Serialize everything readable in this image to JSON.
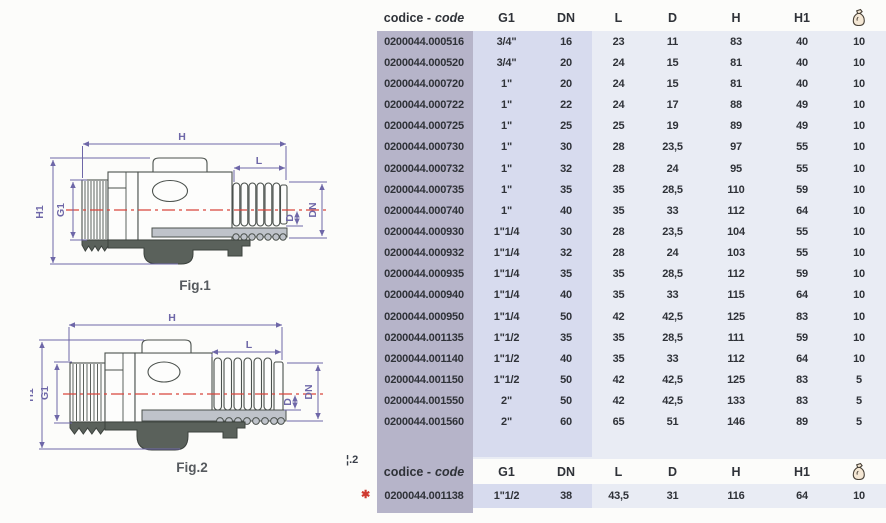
{
  "colors": {
    "code_column_bg": "#b6b4c9",
    "gdn_column_bg": "#d7dbee",
    "table_bg": "#e9ecf4",
    "dimension_line": "#6e67a8",
    "centerline_red": "#d9453c",
    "section_gray": "#bfc3ca",
    "section_dark": "#5a615b",
    "text": "#2f3238",
    "asterisk_red": "#cf3a30"
  },
  "figures": {
    "dim_labels": {
      "h": "H",
      "l": "L",
      "h1": "H1",
      "g1": "G1",
      "d": "D",
      "dn": "DN"
    },
    "fig1_caption": "Fig.1",
    "fig2_caption": "Fig.2"
  },
  "notes": {
    "fig_ref_fragment": "¦.2",
    "asterisk": "✱"
  },
  "table": {
    "headers": {
      "code_bold": "codice -",
      "code_italic": "code",
      "g1": "G1",
      "dn": "DN",
      "l": "L",
      "d": "D",
      "h": "H",
      "h1": "H1",
      "qty_icon": "bag-icon"
    },
    "rows": [
      [
        "0200044.000516",
        "3/4\"",
        "16",
        "23",
        "11",
        "83",
        "40",
        "10"
      ],
      [
        "0200044.000520",
        "3/4\"",
        "20",
        "24",
        "15",
        "81",
        "40",
        "10"
      ],
      [
        "0200044.000720",
        "1\"",
        "20",
        "24",
        "15",
        "81",
        "40",
        "10"
      ],
      [
        "0200044.000722",
        "1\"",
        "22",
        "24",
        "17",
        "88",
        "49",
        "10"
      ],
      [
        "0200044.000725",
        "1\"",
        "25",
        "25",
        "19",
        "89",
        "49",
        "10"
      ],
      [
        "0200044.000730",
        "1\"",
        "30",
        "28",
        "23,5",
        "97",
        "55",
        "10"
      ],
      [
        "0200044.000732",
        "1\"",
        "32",
        "28",
        "24",
        "95",
        "55",
        "10"
      ],
      [
        "0200044.000735",
        "1\"",
        "35",
        "35",
        "28,5",
        "110",
        "59",
        "10"
      ],
      [
        "0200044.000740",
        "1\"",
        "40",
        "35",
        "33",
        "112",
        "64",
        "10"
      ],
      [
        "0200044.000930",
        "1\"1/4",
        "30",
        "28",
        "23,5",
        "104",
        "55",
        "10"
      ],
      [
        "0200044.000932",
        "1\"1/4",
        "32",
        "28",
        "24",
        "103",
        "55",
        "10"
      ],
      [
        "0200044.000935",
        "1\"1/4",
        "35",
        "35",
        "28,5",
        "112",
        "59",
        "10"
      ],
      [
        "0200044.000940",
        "1\"1/4",
        "40",
        "35",
        "33",
        "115",
        "64",
        "10"
      ],
      [
        "0200044.000950",
        "1\"1/4",
        "50",
        "42",
        "42,5",
        "125",
        "83",
        "10"
      ],
      [
        "0200044.001135",
        "1\"1/2",
        "35",
        "35",
        "28,5",
        "111",
        "59",
        "10"
      ],
      [
        "0200044.001140",
        "1\"1/2",
        "40",
        "35",
        "33",
        "112",
        "64",
        "10"
      ],
      [
        "0200044.001150",
        "1\"1/2",
        "50",
        "42",
        "42,5",
        "125",
        "83",
        "5"
      ],
      [
        "0200044.001550",
        "2\"",
        "50",
        "42",
        "42,5",
        "133",
        "83",
        "5"
      ],
      [
        "0200044.001560",
        "2\"",
        "60",
        "65",
        "51",
        "146",
        "89",
        "5"
      ]
    ]
  },
  "table2": {
    "rows": [
      [
        "0200044.001138",
        "1\"1/2",
        "38",
        "43,5",
        "31",
        "116",
        "64",
        "10"
      ]
    ]
  }
}
